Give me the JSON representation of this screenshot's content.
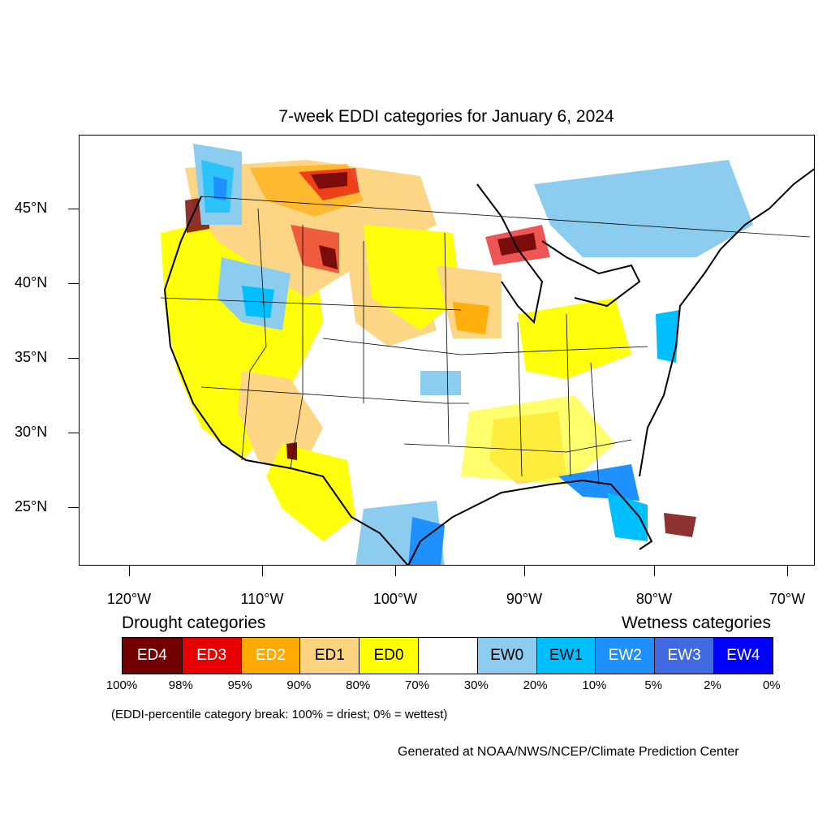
{
  "title": "7-week EDDI categories for January 6, 2024",
  "lat_labels": [
    "45°N",
    "40°N",
    "35°N",
    "30°N",
    "25°N"
  ],
  "lon_labels": [
    "120°W",
    "110°W",
    "100°W",
    "90°W",
    "80°W",
    "70°W"
  ],
  "legend": {
    "drought_heading": "Drought categories",
    "wetness_heading": "Wetness categories",
    "categories": [
      {
        "label": "ED4",
        "color": "#730000",
        "text_color": "#ffffff"
      },
      {
        "label": "ED3",
        "color": "#e60000",
        "text_color": "#ffffff"
      },
      {
        "label": "ED2",
        "color": "#ffaa00",
        "text_color": "#ffffff"
      },
      {
        "label": "ED1",
        "color": "#fcd37f",
        "text_color": "#000000"
      },
      {
        "label": "ED0",
        "color": "#ffff00",
        "text_color": "#000000"
      },
      {
        "label": "",
        "color": "#ffffff",
        "text_color": "#000000"
      },
      {
        "label": "EW0",
        "color": "#8ccdef",
        "text_color": "#000000"
      },
      {
        "label": "EW1",
        "color": "#00bfff",
        "text_color": "#000000"
      },
      {
        "label": "EW2",
        "color": "#1e90ff",
        "text_color": "#ffffff"
      },
      {
        "label": "EW3",
        "color": "#4169e1",
        "text_color": "#ffffff"
      },
      {
        "label": "EW4",
        "color": "#0000ff",
        "text_color": "#ffffff"
      }
    ],
    "breaks": [
      "100%",
      "98%",
      "95%",
      "90%",
      "80%",
      "70%",
      "30%",
      "20%",
      "10%",
      "5%",
      "2%",
      "0%"
    ]
  },
  "note": "(EDDI-percentile category break: 100% = driest; 0% = wettest)",
  "credit": "Generated at NOAA/NWS/NCEP/Climate Prediction Center"
}
